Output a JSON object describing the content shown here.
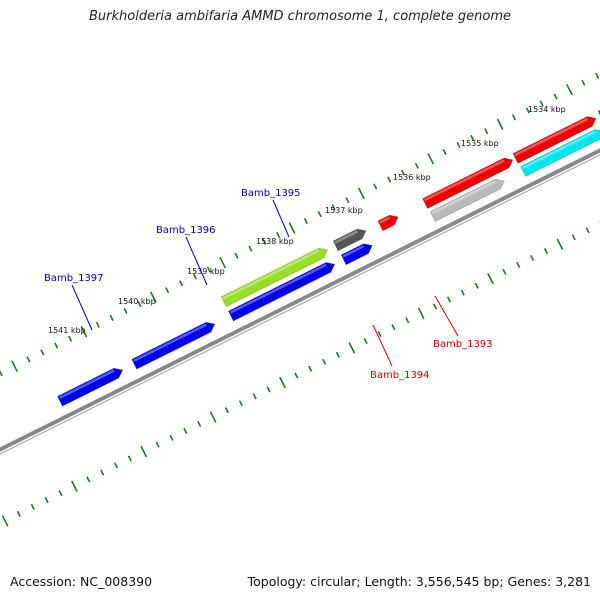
{
  "title": "Burkholderia ambifaria AMMD chromosome 1, complete genome",
  "footer": {
    "accession": "Accession: NC_008390",
    "stats": "Topology: circular; Length: 3,556,545 bp; Genes: 3,281"
  },
  "ticks": [
    "1534 kbp",
    "1535 kbp",
    "1536 kbp",
    "1537 kbp",
    "1538 kbp",
    "1539 kbp",
    "1540 kbp",
    "1541 kbp"
  ],
  "gene_labels": [
    {
      "name": "Bamb_1397",
      "color": "#0000aa"
    },
    {
      "name": "Bamb_1396",
      "color": "#0000aa"
    },
    {
      "name": "Bamb_1395",
      "color": "#0000aa"
    },
    {
      "name": "Bamb_1394",
      "color": "#cc0000"
    },
    {
      "name": "Bamb_1393",
      "color": "#cc0000"
    }
  ],
  "colors": {
    "forward_cds": "#ee0000",
    "forward_alt": "#00e5ee",
    "reverse_cds": "#0000ee",
    "highlight": "#99dd22",
    "gray_dark": "#555555",
    "gray_light": "#bbbbbb",
    "tick": "#1a7a1a",
    "backbone": "#888888"
  }
}
